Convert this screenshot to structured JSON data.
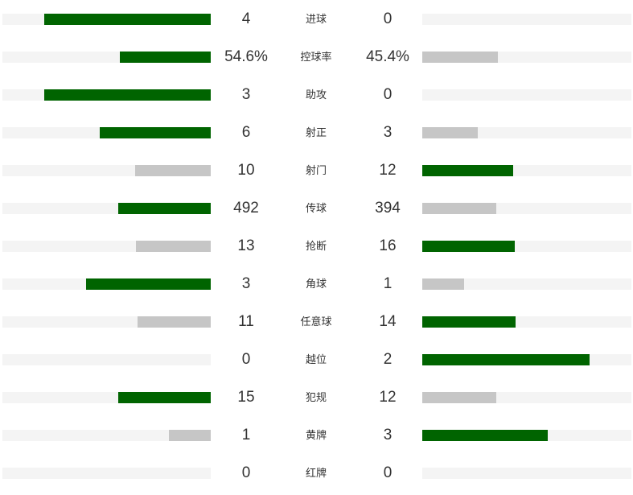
{
  "colors": {
    "leading": "#006400",
    "trailing": "#c6c6c6",
    "track": "#f4f4f4"
  },
  "stats": [
    {
      "label": "进球",
      "home": "4",
      "away": "0"
    },
    {
      "label": "控球率",
      "home": "54.6%",
      "away": "45.4%"
    },
    {
      "label": "助攻",
      "home": "3",
      "away": "0"
    },
    {
      "label": "射正",
      "home": "6",
      "away": "3"
    },
    {
      "label": "射门",
      "home": "10",
      "away": "12"
    },
    {
      "label": "传球",
      "home": "492",
      "away": "394"
    },
    {
      "label": "抢断",
      "home": "13",
      "away": "16"
    },
    {
      "label": "角球",
      "home": "3",
      "away": "1"
    },
    {
      "label": "任意球",
      "home": "11",
      "away": "14"
    },
    {
      "label": "越位",
      "home": "0",
      "away": "2"
    },
    {
      "label": "犯规",
      "home": "15",
      "away": "12"
    },
    {
      "label": "黄牌",
      "home": "1",
      "away": "3"
    },
    {
      "label": "红牌",
      "home": "0",
      "away": "0"
    }
  ]
}
